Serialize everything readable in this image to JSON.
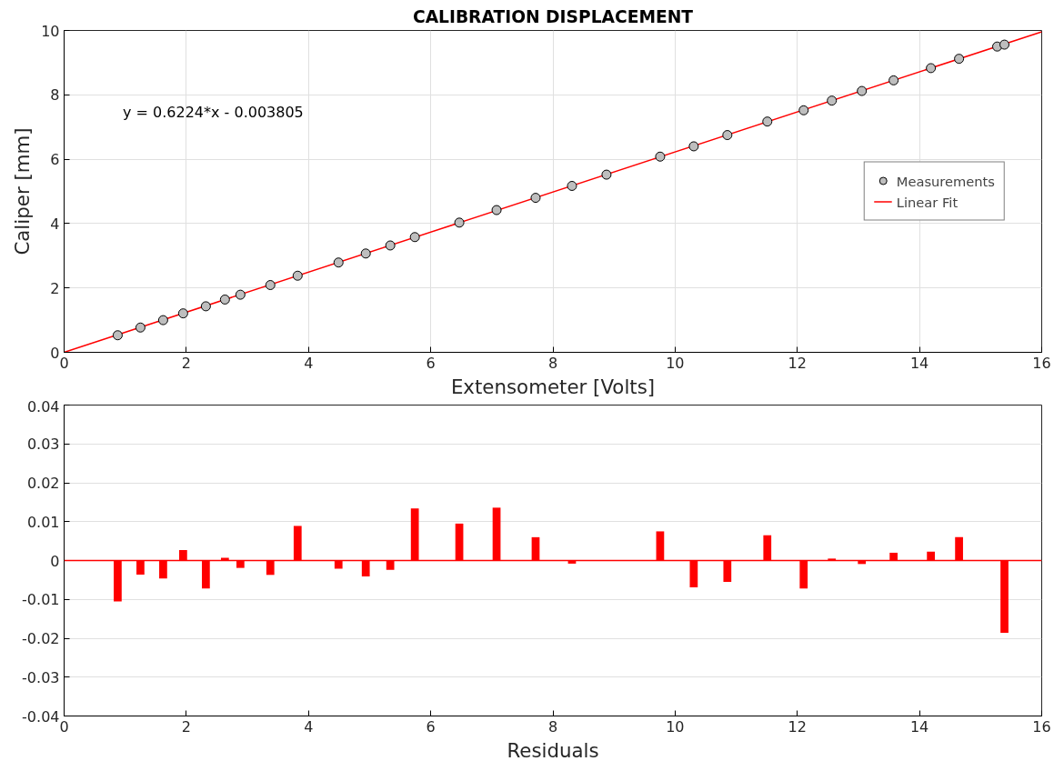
{
  "chart_data": [
    {
      "type": "scatter",
      "title": "CALIBRATION DISPLACEMENT",
      "xlabel": "Extensometer [Volts]",
      "ylabel": "Caliper [mm]",
      "xlim": [
        0,
        16
      ],
      "xticks": [
        0,
        2,
        4,
        6,
        8,
        10,
        12,
        14,
        16
      ],
      "ylim": [
        0,
        10
      ],
      "yticks": [
        0,
        2,
        4,
        6,
        8,
        10
      ],
      "grid": true,
      "legend": "right",
      "annotations": [
        "y = 0.6224*x - 0.003805"
      ],
      "series": [
        {
          "name": "Measurements",
          "type": "scatter",
          "marker": "circle",
          "color": "#bebebe",
          "x": [
            0.877,
            1.249,
            1.621,
            1.948,
            2.32,
            2.632,
            2.885,
            3.375,
            3.822,
            4.491,
            4.937,
            5.338,
            5.74,
            6.468,
            7.078,
            7.717,
            8.312,
            8.877,
            9.755,
            10.305,
            10.855,
            11.509,
            12.104,
            12.565,
            13.056,
            13.576,
            14.186,
            14.647,
            15.271,
            15.39
          ],
          "values": [
            0.53,
            0.77,
            1.0,
            1.21,
            1.43,
            1.64,
            1.79,
            2.09,
            2.38,
            2.79,
            3.07,
            3.32,
            3.58,
            4.03,
            4.42,
            4.8,
            5.17,
            5.52,
            6.08,
            6.4,
            6.75,
            7.17,
            7.52,
            7.82,
            8.12,
            8.45,
            8.83,
            9.12,
            9.5,
            9.56
          ]
        },
        {
          "name": "Linear Fit",
          "type": "line",
          "marker": "none",
          "color": "#ff0000",
          "x": [
            0,
            16
          ],
          "values": [
            0,
            9.96
          ]
        }
      ]
    },
    {
      "type": "bar",
      "xlabel": "Residuals",
      "xlim": [
        0,
        16
      ],
      "xticks": [
        0,
        2,
        4,
        6,
        8,
        10,
        12,
        14,
        16
      ],
      "ylim": [
        -0.04,
        0.04
      ],
      "yticks": [
        -0.04,
        -0.03,
        -0.02,
        -0.01,
        0,
        0.01,
        0.02,
        0.03,
        0.04
      ],
      "grid": "y",
      "ref_lines": [
        {
          "axis": "y",
          "value": 0,
          "color": "#ff0000"
        }
      ],
      "series": [
        {
          "color": "#ff0000",
          "x": [
            0.877,
            1.249,
            1.621,
            1.948,
            2.32,
            2.632,
            2.885,
            3.375,
            3.822,
            4.491,
            4.937,
            5.338,
            5.74,
            6.468,
            7.078,
            7.717,
            8.312,
            8.877,
            9.755,
            10.305,
            10.855,
            11.509,
            12.104,
            12.565,
            13.056,
            13.576,
            14.186,
            14.647,
            15.271,
            15.39
          ],
          "values": [
            -0.0105,
            -0.0036,
            -0.0046,
            0.0027,
            -0.0072,
            0.0007,
            -0.0019,
            -0.0037,
            0.0089,
            -0.0021,
            -0.0041,
            -0.0024,
            0.0134,
            0.0095,
            0.0136,
            0.006,
            -0.0008,
            null,
            0.0075,
            -0.0069,
            -0.0055,
            0.0065,
            -0.0072,
            0.0005,
            -0.0009,
            0.002,
            0.0023,
            0.006,
            null,
            -0.0186
          ]
        }
      ]
    }
  ]
}
